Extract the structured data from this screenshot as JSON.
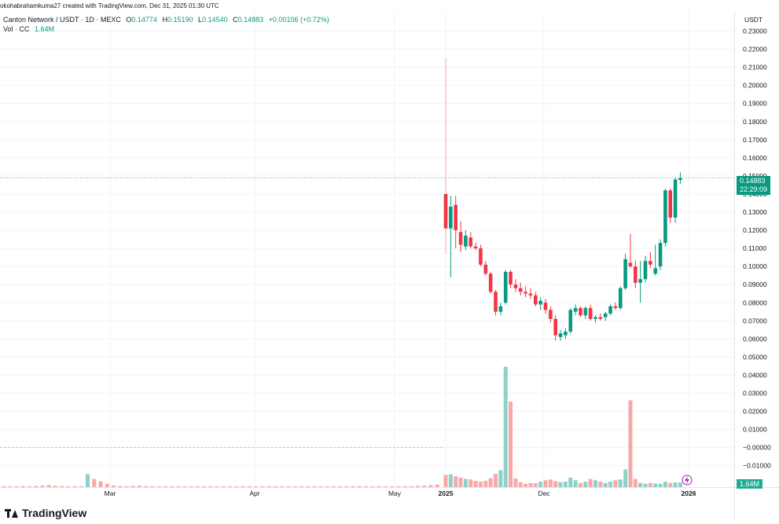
{
  "header": {
    "watermark": "okohabrahamkuma27 created with TradingView.com, Dec 31, 2025 01:30 UTC",
    "symbol": "Canton Network / USDT · 1D · MEXC",
    "ohlc": {
      "o_label": "O",
      "o_value": "0.14774",
      "h_label": "H",
      "h_value": "0.15190",
      "l_label": "L",
      "l_value": "0.14540",
      "c_label": "C",
      "c_value": "0.14883",
      "change": "+0.00106 (+0.72%)"
    },
    "vol_label": "Vol · CC",
    "vol_value": "1.64M"
  },
  "brand": "TradingView",
  "colors": {
    "up": "#089981",
    "down": "#F23645",
    "up_vol": "#8ED1C6",
    "down_vol": "#F7A9A7",
    "grid": "#F0F3FA"
  },
  "chart_data": {
    "type": "candlestick",
    "currency_label": "USDT",
    "y_ticks": [
      "0.23000",
      "0.22000",
      "0.21000",
      "0.20000",
      "0.19000",
      "0.18000",
      "0.17000",
      "0.16000",
      "0.15000",
      "0.14000",
      "0.13000",
      "0.12000",
      "0.11000",
      "0.10000",
      "0.09000",
      "0.08000",
      "0.07000",
      "0.06000",
      "0.05000",
      "0.04000",
      "0.03000",
      "0.02000",
      "0.01000",
      "−0.00000",
      "−0.01000"
    ],
    "ylim": [
      -0.01,
      0.23
    ],
    "x_ticks": [
      {
        "label": "Mar",
        "date": "2024-03-01"
      },
      {
        "label": "Apr",
        "date": "2024-04-01"
      },
      {
        "label": "May",
        "date": "2024-05-01"
      },
      {
        "label": "2025",
        "date": "2025-01-01"
      },
      {
        "label": "Dec",
        "date": "2025-12-01"
      },
      {
        "label": "2026",
        "date": "2026-01-01"
      }
    ],
    "last_price": "0.14883",
    "countdown": "22:29:09",
    "last_volume": "1.64M",
    "candles": [
      {
        "o": 0.14,
        "h": 0.215,
        "l": 0.107,
        "c": 0.121
      },
      {
        "o": 0.121,
        "h": 0.139,
        "l": 0.094,
        "c": 0.133
      },
      {
        "o": 0.134,
        "h": 0.139,
        "l": 0.11,
        "c": 0.12
      },
      {
        "o": 0.119,
        "h": 0.125,
        "l": 0.108,
        "c": 0.112
      },
      {
        "o": 0.111,
        "h": 0.12,
        "l": 0.109,
        "c": 0.117
      },
      {
        "o": 0.116,
        "h": 0.119,
        "l": 0.11,
        "c": 0.111
      },
      {
        "o": 0.111,
        "h": 0.113,
        "l": 0.109,
        "c": 0.11
      },
      {
        "o": 0.11,
        "h": 0.112,
        "l": 0.1,
        "c": 0.101
      },
      {
        "o": 0.101,
        "h": 0.103,
        "l": 0.095,
        "c": 0.096
      },
      {
        "o": 0.096,
        "h": 0.097,
        "l": 0.085,
        "c": 0.086
      },
      {
        "o": 0.086,
        "h": 0.087,
        "l": 0.073,
        "c": 0.075
      },
      {
        "o": 0.075,
        "h": 0.08,
        "l": 0.073,
        "c": 0.078
      },
      {
        "o": 0.08,
        "h": 0.098,
        "l": 0.079,
        "c": 0.097
      },
      {
        "o": 0.097,
        "h": 0.098,
        "l": 0.088,
        "c": 0.09
      },
      {
        "o": 0.09,
        "h": 0.093,
        "l": 0.086,
        "c": 0.088
      },
      {
        "o": 0.088,
        "h": 0.091,
        "l": 0.084,
        "c": 0.086
      },
      {
        "o": 0.086,
        "h": 0.089,
        "l": 0.083,
        "c": 0.085
      },
      {
        "o": 0.085,
        "h": 0.088,
        "l": 0.082,
        "c": 0.084
      },
      {
        "o": 0.084,
        "h": 0.086,
        "l": 0.078,
        "c": 0.079
      },
      {
        "o": 0.079,
        "h": 0.083,
        "l": 0.076,
        "c": 0.081
      },
      {
        "o": 0.08,
        "h": 0.082,
        "l": 0.074,
        "c": 0.076
      },
      {
        "o": 0.076,
        "h": 0.078,
        "l": 0.069,
        "c": 0.071
      },
      {
        "o": 0.071,
        "h": 0.073,
        "l": 0.059,
        "c": 0.062
      },
      {
        "o": 0.061,
        "h": 0.065,
        "l": 0.059,
        "c": 0.063
      },
      {
        "o": 0.062,
        "h": 0.066,
        "l": 0.06,
        "c": 0.064
      },
      {
        "o": 0.064,
        "h": 0.077,
        "l": 0.063,
        "c": 0.076
      },
      {
        "o": 0.075,
        "h": 0.079,
        "l": 0.073,
        "c": 0.077
      },
      {
        "o": 0.077,
        "h": 0.078,
        "l": 0.072,
        "c": 0.073
      },
      {
        "o": 0.073,
        "h": 0.078,
        "l": 0.071,
        "c": 0.077
      },
      {
        "o": 0.077,
        "h": 0.079,
        "l": 0.07,
        "c": 0.071
      },
      {
        "o": 0.071,
        "h": 0.073,
        "l": 0.069,
        "c": 0.072
      },
      {
        "o": 0.072,
        "h": 0.074,
        "l": 0.07,
        "c": 0.071
      },
      {
        "o": 0.072,
        "h": 0.075,
        "l": 0.07,
        "c": 0.074
      },
      {
        "o": 0.074,
        "h": 0.079,
        "l": 0.073,
        "c": 0.078
      },
      {
        "o": 0.078,
        "h": 0.08,
        "l": 0.076,
        "c": 0.077
      },
      {
        "o": 0.077,
        "h": 0.089,
        "l": 0.076,
        "c": 0.088
      },
      {
        "o": 0.088,
        "h": 0.107,
        "l": 0.087,
        "c": 0.104
      },
      {
        "o": 0.102,
        "h": 0.118,
        "l": 0.099,
        "c": 0.1
      },
      {
        "o": 0.1,
        "h": 0.103,
        "l": 0.088,
        "c": 0.091
      },
      {
        "o": 0.091,
        "h": 0.103,
        "l": 0.08,
        "c": 0.093
      },
      {
        "o": 0.093,
        "h": 0.106,
        "l": 0.091,
        "c": 0.103
      },
      {
        "o": 0.103,
        "h": 0.108,
        "l": 0.099,
        "c": 0.101
      },
      {
        "o": 0.096,
        "h": 0.112,
        "l": 0.095,
        "c": 0.099
      },
      {
        "o": 0.1,
        "h": 0.115,
        "l": 0.098,
        "c": 0.113
      },
      {
        "o": 0.113,
        "h": 0.143,
        "l": 0.111,
        "c": 0.142
      },
      {
        "o": 0.142,
        "h": 0.143,
        "l": 0.124,
        "c": 0.127
      },
      {
        "o": 0.127,
        "h": 0.149,
        "l": 0.124,
        "c": 0.148
      },
      {
        "o": 0.14774,
        "h": 0.1519,
        "l": 0.1454,
        "c": 0.14883
      }
    ],
    "candle_dates": [
      "2025-01-01",
      "2025-01-04",
      "2025-01-07",
      "2025-01-10",
      "2025-01-13",
      "2025-01-16",
      "2025-01-19",
      "2025-01-22",
      "2025-01-25",
      "2025-01-28",
      "2025-01-31",
      "2025-02-03",
      "2025-02-06",
      "2025-02-09",
      "2025-02-12",
      "2025-02-15",
      "2025-02-18",
      "2025-02-21",
      "2025-02-24",
      "2025-02-27",
      "2025-03-02",
      "2025-03-05",
      "2025-03-08",
      "2025-03-11",
      "2025-03-14",
      "2025-03-17",
      "2025-03-20",
      "2025-03-23",
      "2025-03-26",
      "2025-03-29",
      "2025-04-01",
      "2025-04-04",
      "2025-04-07",
      "2025-04-10",
      "2025-04-13",
      "2025-04-16",
      "2025-04-19",
      "2025-04-22",
      "2025-04-25",
      "2025-04-28",
      "2025-05-01",
      "2025-05-04",
      "2025-05-07",
      "2025-05-10",
      "2025-05-13",
      "2025-05-16",
      "2025-05-19",
      "2025-12-31"
    ],
    "volumes_m": [
      4.5,
      4.7,
      4.0,
      3.5,
      3.0,
      2.8,
      2.3,
      2.0,
      2.3,
      3.3,
      4.9,
      6.2,
      44.3,
      31.5,
      3.2,
      1.8,
      1.2,
      1.5,
      1.4,
      2.0,
      2.5,
      2.8,
      2.2,
      1.8,
      2.0,
      3.5,
      2.5,
      1.5,
      2.0,
      3.0,
      2.5,
      2.0,
      1.5,
      2.0,
      2.5,
      2.8,
      6.5,
      32.0,
      3.0,
      1.5,
      1.2,
      1.5,
      1.3,
      1.2,
      2.0,
      1.5,
      1.7,
      1.64
    ],
    "pre_listing_volumes_m": [
      0.3,
      0.5,
      0.4,
      0.6,
      0.5,
      0.7,
      0.9,
      1.2,
      0.8,
      0.6,
      0.5,
      0.4,
      0.3,
      8.0,
      5.0,
      3.5,
      2.0,
      1.0,
      0.6,
      0.5,
      0.7,
      0.8,
      0.6,
      0.5,
      0.4,
      0.3,
      0.3,
      0.4,
      0.5,
      0.3,
      0.2,
      0.3,
      0.4,
      0.3,
      0.2,
      0.3,
      0.2,
      0.2,
      0.3,
      0.4,
      0.5,
      0.3,
      0.2,
      0.2,
      0.3,
      0.3,
      0.2,
      0.2,
      0.3,
      0.4,
      0.3,
      0.2,
      0.2,
      0.3,
      0.4,
      0.6,
      0.5,
      0.4,
      0.3,
      0.2,
      0.2,
      0.3,
      0.4,
      0.5,
      0.7,
      0.9,
      1.2,
      1.5
    ]
  }
}
